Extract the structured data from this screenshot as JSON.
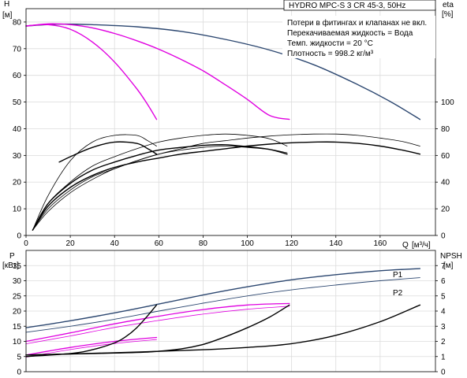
{
  "chart_data": [
    {
      "type": "line",
      "title": "HYDRO MPC-S 3 CR 45-3, 50Hz",
      "ylabel_left": "H",
      "ylabel_left_unit": "[м]",
      "ylabel_right": "eta",
      "ylabel_right_unit": "[%]",
      "xlabel": "Q",
      "xlabel_unit": "[м³/ч]",
      "xlim": [
        0,
        185
      ],
      "x_ticks": [
        "0",
        "20",
        "40",
        "60",
        "80",
        "100",
        "120",
        "140",
        "160"
      ],
      "x_tick_values": [
        0,
        20,
        40,
        60,
        80,
        100,
        120,
        140,
        160
      ],
      "ylim_left": [
        0,
        85
      ],
      "y_ticks_left": [
        "0",
        "10",
        "20",
        "30",
        "40",
        "50",
        "60",
        "70",
        "80"
      ],
      "y_tick_values_left": [
        0,
        10,
        20,
        30,
        40,
        50,
        60,
        70,
        80
      ],
      "ylim_right": [
        0,
        170
      ],
      "y_ticks_right": [
        "0",
        "20",
        "40",
        "60",
        "80",
        "100"
      ],
      "y_tick_values_right": [
        0,
        20,
        40,
        60,
        80,
        100
      ],
      "grid": true,
      "legend_lines": [
        "Потери в фитингах и клапанах не вкл.",
        "Перекачиваемая жидкость = Вода",
        "Темп. жидкости = 20 °C",
        "Плотность = 998.2 кг/м³"
      ],
      "series": [
        {
          "axis": "left",
          "color": "#2c4770",
          "width": 1.4,
          "x": [
            0,
            15,
            30,
            50,
            70,
            90,
            110,
            130,
            150,
            165,
            178
          ],
          "y": [
            78.5,
            79.2,
            79,
            78.2,
            76.5,
            73.5,
            69.5,
            64,
            56.5,
            50,
            43.5
          ]
        },
        {
          "axis": "left",
          "color": "#e000e0",
          "width": 1.4,
          "x": [
            0,
            10,
            20,
            30,
            40,
            50,
            60,
            70,
            80,
            90,
            100,
            110,
            119
          ],
          "y": [
            78.5,
            79.3,
            79,
            77.8,
            75.7,
            73,
            69.8,
            66,
            61.7,
            56.5,
            51,
            45,
            43.5
          ]
        },
        {
          "axis": "left",
          "color": "#e000e0",
          "width": 1.4,
          "x": [
            0,
            10,
            20,
            30,
            40,
            50,
            55,
            59
          ],
          "y": [
            78.5,
            79,
            77.3,
            72.5,
            65,
            55,
            49,
            43.5
          ]
        },
        {
          "axis": "right",
          "color": "#000000",
          "width": 1.4,
          "x": [
            3,
            10,
            20,
            30,
            40,
            50,
            60,
            70,
            80,
            90,
            100,
            110,
            120,
            130,
            140,
            150,
            160,
            170,
            178
          ],
          "y": [
            4,
            22,
            36,
            45,
            51,
            55,
            58,
            61,
            63,
            65,
            67,
            68.5,
            69.5,
            70,
            70,
            69,
            67,
            64,
            61
          ]
        },
        {
          "axis": "right",
          "color": "#000000",
          "width": 1.4,
          "x": [
            3,
            10,
            20,
            30,
            40,
            50,
            60,
            70,
            80,
            90,
            100,
            110,
            118
          ],
          "y": [
            4,
            24,
            39,
            49,
            55,
            60,
            64,
            66,
            67.5,
            68,
            66.5,
            64.5,
            61
          ]
        },
        {
          "axis": "right",
          "color": "#000000",
          "width": 1.4,
          "x": [
            15,
            20,
            30,
            40,
            50,
            55,
            59
          ],
          "y": [
            55,
            59,
            66,
            70,
            69,
            65,
            61
          ]
        },
        {
          "axis": "right",
          "color": "#000000",
          "width": 0.8,
          "x": [
            3,
            10,
            20,
            30,
            40,
            50,
            60,
            70,
            80,
            90,
            100,
            110,
            120,
            130,
            140,
            150,
            160,
            170,
            178
          ],
          "y": [
            4,
            20,
            34,
            44,
            50,
            56,
            61,
            65,
            69,
            71,
            73,
            74.5,
            75.5,
            76,
            76,
            75,
            73,
            70.5,
            67
          ]
        },
        {
          "axis": "right",
          "color": "#000000",
          "width": 0.8,
          "x": [
            3,
            10,
            20,
            30,
            40,
            50,
            60,
            70,
            80,
            90,
            100,
            110,
            118
          ],
          "y": [
            4,
            24,
            40,
            52,
            59,
            65,
            70,
            73,
            75,
            76,
            75,
            72.5,
            67
          ]
        },
        {
          "axis": "right",
          "color": "#000000",
          "width": 0.8,
          "x": [
            3,
            10,
            20,
            30,
            40,
            50,
            55,
            59
          ],
          "y": [
            4,
            30,
            56,
            70,
            75,
            75,
            71,
            67
          ]
        },
        {
          "axis": "right",
          "color": "#000000",
          "width": 0.8,
          "x": [
            3,
            10,
            20,
            30,
            40,
            50,
            60,
            70,
            80,
            90,
            100,
            110,
            118
          ],
          "y": [
            4,
            18,
            32,
            42,
            50,
            56,
            61,
            64,
            66,
            67,
            66,
            64.5,
            62
          ]
        }
      ]
    },
    {
      "type": "line",
      "ylabel_left": "P",
      "ylabel_left_unit": "[кВт]",
      "ylabel_right": "NPSH",
      "ylabel_right_unit": "[м]",
      "xlim": [
        0,
        185
      ],
      "ylim_left": [
        0,
        40
      ],
      "y_ticks_left": [
        "0",
        "5",
        "10",
        "15",
        "20",
        "25",
        "30",
        "35"
      ],
      "y_tick_values_left": [
        0,
        5,
        10,
        15,
        20,
        25,
        30,
        35
      ],
      "ylim_right": [
        0,
        8
      ],
      "y_ticks_right": [
        "0",
        "1",
        "2",
        "3",
        "4",
        "5",
        "6",
        "7"
      ],
      "y_tick_values_right": [
        0,
        1,
        2,
        3,
        4,
        5,
        6,
        7
      ],
      "grid": true,
      "series": [
        {
          "name": "P1",
          "axis": "left",
          "color": "#2c4770",
          "width": 1.4,
          "x": [
            0,
            20,
            40,
            60,
            80,
            100,
            120,
            140,
            160,
            178
          ],
          "y": [
            14.5,
            16.8,
            19.4,
            22.3,
            25.3,
            28,
            30.3,
            32,
            33.3,
            34
          ]
        },
        {
          "name": "P2",
          "axis": "left",
          "color": "#2c4770",
          "width": 0.9,
          "x": [
            0,
            20,
            40,
            60,
            80,
            100,
            120,
            140,
            160,
            178
          ],
          "y": [
            13,
            15,
            17.3,
            20,
            22.6,
            25,
            27,
            28.6,
            30,
            31
          ]
        },
        {
          "axis": "left",
          "color": "#e000e0",
          "width": 1.3,
          "x": [
            0,
            20,
            40,
            60,
            80,
            100,
            119
          ],
          "y": [
            10,
            12.8,
            15.8,
            18.3,
            20.5,
            22,
            22.5
          ]
        },
        {
          "axis": "left",
          "color": "#e000e0",
          "width": 0.8,
          "x": [
            0,
            20,
            40,
            60,
            80,
            100,
            119
          ],
          "y": [
            9.2,
            11.8,
            14.6,
            16.9,
            19,
            20.6,
            21.6
          ]
        },
        {
          "axis": "left",
          "color": "#e000e0",
          "width": 1.3,
          "x": [
            0,
            20,
            40,
            59
          ],
          "y": [
            5.5,
            8,
            10,
            11.3
          ]
        },
        {
          "axis": "left",
          "color": "#e000e0",
          "width": 0.8,
          "x": [
            0,
            20,
            40,
            59
          ],
          "y": [
            4.8,
            7.3,
            9.3,
            10.6
          ]
        },
        {
          "axis": "right",
          "color": "#000000",
          "width": 1.4,
          "x": [
            0,
            40,
            80,
            100,
            120,
            140,
            160,
            178
          ],
          "y": [
            1.1,
            1.25,
            1.45,
            1.6,
            1.85,
            2.4,
            3.3,
            4.4
          ]
        },
        {
          "axis": "right",
          "color": "#000000",
          "width": 1.4,
          "x": [
            0,
            30,
            55,
            70,
            80,
            90,
            100,
            110,
            119
          ],
          "y": [
            1.1,
            1.2,
            1.3,
            1.5,
            1.8,
            2.3,
            2.9,
            3.6,
            4.4
          ]
        },
        {
          "axis": "right",
          "color": "#000000",
          "width": 1.4,
          "x": [
            0,
            20,
            30,
            40,
            45,
            50,
            55,
            59
          ],
          "y": [
            1,
            1.2,
            1.45,
            1.9,
            2.3,
            2.9,
            3.7,
            4.4
          ]
        }
      ]
    }
  ]
}
